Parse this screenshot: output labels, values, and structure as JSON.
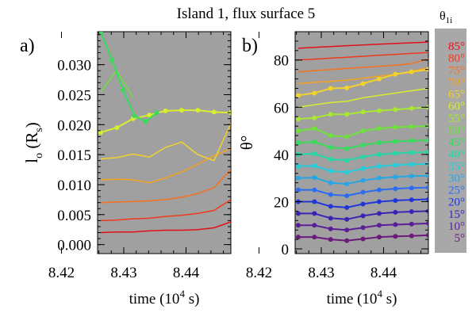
{
  "figure": {
    "title": "Island 1, flux surface 5",
    "legend_title": "θ",
    "legend_title_sub": "1i",
    "legend_entries": [
      "85°",
      "80°",
      "75°",
      "70°",
      "65°",
      "60°",
      "55°",
      "50°",
      "45°",
      "40°",
      "35°",
      "30°",
      "25°",
      "20°",
      "15°",
      "10°",
      "5°"
    ],
    "legend_colors": [
      "#e0101a",
      "#ee3a1c",
      "#f5721e",
      "#f6a21f",
      "#f2d22b",
      "#d8ec30",
      "#a8e832",
      "#6ee23a",
      "#36dc5a",
      "#22d8a6",
      "#22cddc",
      "#27a6e6",
      "#2c6cf0",
      "#2236d8",
      "#3a24b4",
      "#5a1e96",
      "#6a1a7a"
    ]
  },
  "chart_data": [
    {
      "type": "line",
      "panel_label": "a)",
      "xlabel": "time (10",
      "xlabel_exp": "4",
      "xlabel_end": " s)",
      "ylabel": "l",
      "ylabel_sub": "o",
      "ylabel_end": " (R",
      "ylabel_sub2": "s",
      "ylabel_close": ")",
      "xlim": [
        8.4258,
        8.4472
      ],
      "ylim": [
        -0.0015,
        0.0355
      ],
      "xticks": [
        8.42,
        8.43,
        8.44
      ],
      "xtick_labels": [
        "8.42",
        "8.43",
        "8.44"
      ],
      "yticks": [
        0.0,
        0.005,
        0.01,
        0.015,
        0.02,
        0.025,
        0.03
      ],
      "ytick_labels": [
        "0.000",
        "0.005",
        "0.010",
        "0.015",
        "0.020",
        "0.025",
        "0.030"
      ],
      "grid": false,
      "series": [
        {
          "color": "#e0101a",
          "markers": false,
          "x": [
            8.4263,
            8.4289,
            8.4315,
            8.4341,
            8.4367,
            8.4393,
            8.4419,
            8.4445,
            8.4472
          ],
          "y": [
            0.002,
            0.0021,
            0.0021,
            0.0023,
            0.0024,
            0.0024,
            0.0025,
            0.0028,
            0.0038
          ]
        },
        {
          "color": "#ee3a1c",
          "markers": false,
          "x": [
            8.4263,
            8.4289,
            8.4315,
            8.4341,
            8.4367,
            8.4393,
            8.4419,
            8.4445,
            8.4472
          ],
          "y": [
            0.004,
            0.0041,
            0.0043,
            0.0044,
            0.0047,
            0.0049,
            0.0052,
            0.0057,
            0.0075
          ]
        },
        {
          "color": "#f5721e",
          "markers": false,
          "x": [
            8.4263,
            8.4289,
            8.4315,
            8.4341,
            8.4367,
            8.4393,
            8.4419,
            8.4445,
            8.4472
          ],
          "y": [
            0.007,
            0.0071,
            0.0072,
            0.0073,
            0.0075,
            0.0079,
            0.0085,
            0.0095,
            0.0125
          ]
        },
        {
          "color": "#f6a21f",
          "markers": false,
          "x": [
            8.4263,
            8.4289,
            8.4315,
            8.4341,
            8.4367,
            8.4393,
            8.4419,
            8.4445,
            8.4472
          ],
          "y": [
            0.0108,
            0.0109,
            0.0108,
            0.0103,
            0.0111,
            0.0121,
            0.0134,
            0.0148,
            0.016
          ]
        },
        {
          "color": "#f2d22b",
          "markers": false,
          "x": [
            8.4263,
            8.4289,
            8.4315,
            8.4341,
            8.4367,
            8.4393,
            8.4419,
            8.4445,
            8.4472
          ],
          "y": [
            0.0143,
            0.0145,
            0.0151,
            0.0146,
            0.0162,
            0.0171,
            0.015,
            0.014,
            0.0202
          ]
        },
        {
          "color": "#d8ec30",
          "markers": true,
          "x": [
            8.4263,
            8.4289,
            8.4315,
            8.4341,
            8.4367,
            8.4393,
            8.4419,
            8.4445,
            8.4472
          ],
          "y": [
            0.0187,
            0.0195,
            0.021,
            0.0216,
            0.0223,
            0.0224,
            0.0224,
            0.0221,
            0.022
          ]
        },
        {
          "color": "#6ee23a",
          "markers": false,
          "x": [
            8.4263,
            8.4289,
            8.4315
          ],
          "y": [
            0.0255,
            0.029,
            0.0245
          ]
        },
        {
          "color": "#36dc5a",
          "markers": true,
          "x": [
            8.4263,
            8.4281,
            8.4299,
            8.4317,
            8.4335,
            8.4353
          ],
          "y": [
            0.0355,
            0.0308,
            0.0258,
            0.0215,
            0.0205,
            0.022
          ]
        }
      ]
    },
    {
      "type": "line",
      "panel_label": "b)",
      "xlabel": "time (10",
      "xlabel_exp": "4",
      "xlabel_end": " s)",
      "ylabel": "θ°",
      "xlim": [
        8.4258,
        8.4472
      ],
      "ylim": [
        -2,
        92
      ],
      "xticks": [
        8.42,
        8.43,
        8.44
      ],
      "xtick_labels": [
        "8.42",
        "8.43",
        "8.44"
      ],
      "yticks": [
        0,
        20,
        40,
        60,
        80
      ],
      "ytick_labels": [
        "0",
        "20",
        "40",
        "60",
        "80"
      ],
      "grid": false,
      "x": [
        8.4263,
        8.4289,
        8.4315,
        8.4341,
        8.4367,
        8.4393,
        8.4419,
        8.4445,
        8.4472
      ],
      "series": [
        {
          "color": "#e0101a",
          "markers": false,
          "y": [
            85.0,
            85.4,
            85.7,
            86.1,
            86.4,
            86.7,
            87.0,
            87.3,
            87.6
          ]
        },
        {
          "color": "#ee3a1c",
          "markers": false,
          "y": [
            80.0,
            80.4,
            80.8,
            81.2,
            81.6,
            82.0,
            82.4,
            82.8,
            83.2
          ]
        },
        {
          "color": "#f5721e",
          "markers": false,
          "y": [
            75.0,
            75.5,
            76.0,
            76.5,
            76.9,
            77.3,
            77.8,
            78.5,
            80.5
          ]
        },
        {
          "color": "#f6a21f",
          "markers": false,
          "y": [
            70.0,
            70.5,
            71.0,
            71.5,
            72.3,
            73.1,
            74.0,
            75.2,
            76.8
          ]
        },
        {
          "color": "#f2d22b",
          "markers": true,
          "y": [
            65.0,
            66.0,
            68.0,
            68.2,
            70.0,
            72.0,
            74.0,
            75.0,
            76.0
          ]
        },
        {
          "color": "#d8ec30",
          "markers": false,
          "y": [
            60.0,
            61.0,
            62.0,
            62.5,
            64.0,
            65.0,
            66.0,
            67.0,
            68.0
          ]
        },
        {
          "color": "#a8e832",
          "markers": true,
          "y": [
            55.0,
            55.5,
            57.0,
            57.0,
            58.0,
            58.5,
            59.0,
            59.5,
            60.0
          ]
        },
        {
          "color": "#6ee23a",
          "markers": true,
          "y": [
            50.0,
            51.0,
            48.0,
            47.5,
            50.0,
            51.0,
            51.5,
            51.8,
            52.0
          ]
        },
        {
          "color": "#36dc5a",
          "markers": true,
          "y": [
            45.0,
            45.3,
            43.0,
            42.5,
            44.0,
            45.0,
            45.5,
            45.8,
            46.0
          ]
        },
        {
          "color": "#22d8a6",
          "markers": true,
          "y": [
            40.0,
            40.3,
            38.0,
            37.5,
            39.0,
            40.0,
            40.5,
            40.8,
            41.0
          ]
        },
        {
          "color": "#22cddc",
          "markers": true,
          "y": [
            35.0,
            35.2,
            33.0,
            32.5,
            34.0,
            35.0,
            35.5,
            35.8,
            36.0
          ]
        },
        {
          "color": "#27a6e6",
          "markers": true,
          "y": [
            30.0,
            30.2,
            28.0,
            27.5,
            29.0,
            30.0,
            30.5,
            30.8,
            31.0
          ]
        },
        {
          "color": "#2c6cf0",
          "markers": true,
          "y": [
            25.0,
            25.0,
            23.0,
            22.5,
            24.0,
            25.0,
            25.5,
            25.8,
            26.0
          ]
        },
        {
          "color": "#2236d8",
          "markers": true,
          "y": [
            20.0,
            20.0,
            18.0,
            17.5,
            19.0,
            20.0,
            20.5,
            20.8,
            21.0
          ]
        },
        {
          "color": "#3a24b4",
          "markers": true,
          "y": [
            15.0,
            15.0,
            13.0,
            12.5,
            14.0,
            15.0,
            15.5,
            15.8,
            16.0
          ]
        },
        {
          "color": "#5a1e96",
          "markers": true,
          "y": [
            10.0,
            10.0,
            8.5,
            8.0,
            9.0,
            10.0,
            10.3,
            10.5,
            10.8
          ]
        },
        {
          "color": "#6a1a7a",
          "markers": true,
          "y": [
            5.0,
            5.0,
            4.0,
            3.5,
            4.2,
            5.0,
            5.3,
            5.5,
            5.8
          ]
        }
      ]
    }
  ]
}
